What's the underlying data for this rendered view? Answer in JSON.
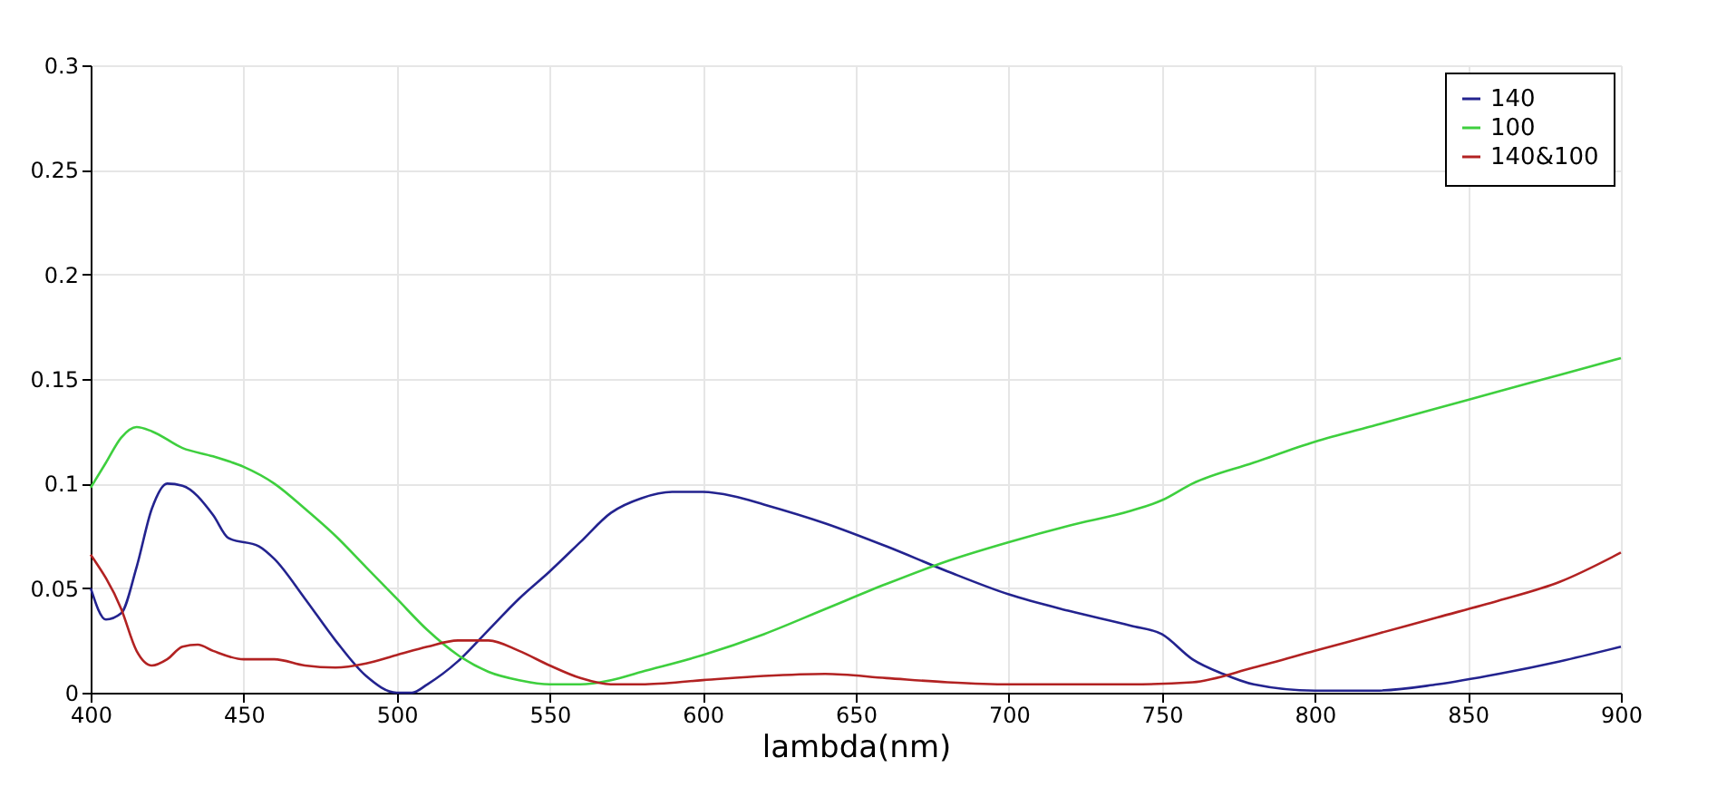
{
  "chart_data": {
    "type": "line",
    "xlabel": "lambda(nm)",
    "xlim": [
      400,
      900
    ],
    "xticks": [
      400,
      450,
      500,
      550,
      600,
      650,
      700,
      750,
      800,
      850,
      900
    ],
    "ylim": [
      0,
      0.3
    ],
    "yticks": [
      0,
      0.05,
      0.1,
      0.15,
      0.2,
      0.25,
      0.3
    ],
    "grid": true,
    "legend": "top right",
    "marker": "none",
    "line_style": "solid",
    "series": [
      {
        "name": "140",
        "color": "#23238f",
        "x": [
          400,
          405,
          410,
          415,
          420,
          425,
          430,
          440,
          445,
          455,
          460,
          470,
          480,
          490,
          500,
          505,
          510,
          520,
          530,
          540,
          550,
          560,
          570,
          580,
          590,
          600,
          610,
          620,
          640,
          660,
          680,
          700,
          720,
          740,
          750,
          760,
          770,
          780,
          800,
          820,
          840,
          860,
          880,
          900
        ],
        "values": [
          0.05,
          0.035,
          0.038,
          0.06,
          0.088,
          0.1,
          0.099,
          0.085,
          0.074,
          0.07,
          0.064,
          0.045,
          0.025,
          0.008,
          0.0,
          0.0,
          0.004,
          0.015,
          0.03,
          0.045,
          0.058,
          0.072,
          0.086,
          0.093,
          0.096,
          0.096,
          0.094,
          0.09,
          0.081,
          0.07,
          0.058,
          0.047,
          0.039,
          0.032,
          0.028,
          0.016,
          0.009,
          0.004,
          0.001,
          0.001,
          0.004,
          0.009,
          0.015,
          0.022
        ]
      },
      {
        "name": "100",
        "color": "#3ecf3e",
        "x": [
          400,
          405,
          410,
          415,
          420,
          430,
          440,
          450,
          460,
          470,
          480,
          490,
          500,
          510,
          520,
          530,
          540,
          550,
          560,
          570,
          580,
          600,
          620,
          640,
          660,
          680,
          700,
          720,
          740,
          750,
          760,
          780,
          800,
          820,
          840,
          860,
          880,
          900
        ],
        "values": [
          0.098,
          0.11,
          0.122,
          0.127,
          0.125,
          0.117,
          0.113,
          0.108,
          0.1,
          0.088,
          0.075,
          0.06,
          0.045,
          0.03,
          0.018,
          0.01,
          0.006,
          0.004,
          0.004,
          0.006,
          0.01,
          0.018,
          0.028,
          0.04,
          0.052,
          0.063,
          0.072,
          0.08,
          0.087,
          0.092,
          0.1,
          0.11,
          0.12,
          0.128,
          0.136,
          0.144,
          0.152,
          0.16
        ]
      },
      {
        "name": "140&100",
        "color": "#b22222",
        "x": [
          400,
          410,
          415,
          420,
          425,
          430,
          435,
          440,
          450,
          460,
          470,
          480,
          490,
          500,
          510,
          520,
          530,
          540,
          550,
          560,
          570,
          580,
          600,
          620,
          640,
          660,
          680,
          700,
          740,
          760,
          780,
          800,
          820,
          840,
          860,
          880,
          900
        ],
        "values": [
          0.066,
          0.04,
          0.02,
          0.013,
          0.016,
          0.022,
          0.023,
          0.02,
          0.016,
          0.016,
          0.013,
          0.012,
          0.014,
          0.018,
          0.022,
          0.025,
          0.025,
          0.02,
          0.013,
          0.007,
          0.004,
          0.004,
          0.006,
          0.008,
          0.009,
          0.007,
          0.005,
          0.004,
          0.004,
          0.005,
          0.012,
          0.02,
          0.028,
          0.036,
          0.044,
          0.053,
          0.067
        ]
      }
    ]
  }
}
